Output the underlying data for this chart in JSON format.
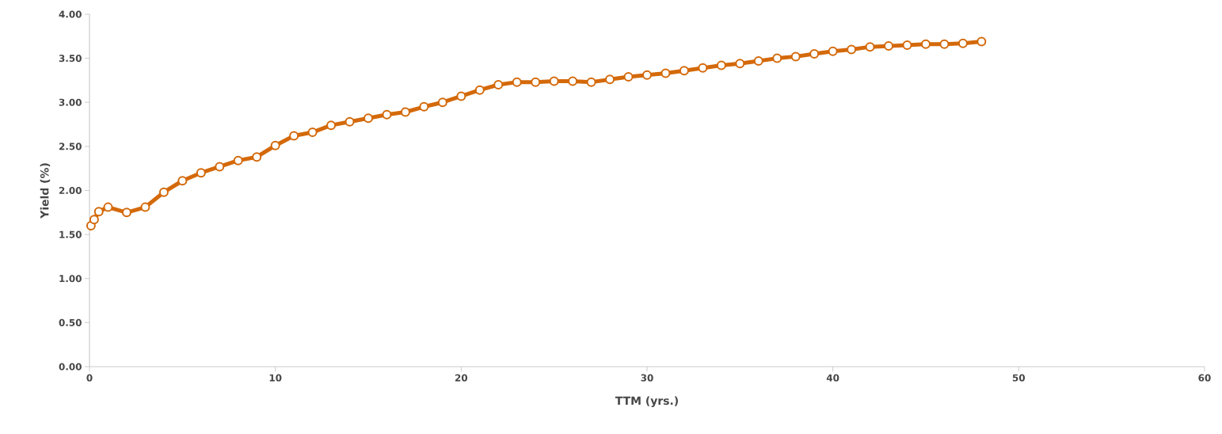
{
  "chart_data": {
    "type": "line",
    "xlabel": "TTM (yrs.)",
    "ylabel": "Yield (%)",
    "xlim": [
      0,
      60
    ],
    "xticks": [
      0,
      10,
      20,
      30,
      40,
      50,
      60
    ],
    "ylim": [
      0,
      4
    ],
    "yticks": [
      {
        "value": 0,
        "label": "0.00"
      },
      {
        "value": 0.5,
        "label": "0.50"
      },
      {
        "value": 1,
        "label": "1.00"
      },
      {
        "value": 1.5,
        "label": "1.50"
      },
      {
        "value": 2,
        "label": "2.00"
      },
      {
        "value": 2.5,
        "label": "2.50"
      },
      {
        "value": 3,
        "label": "3.00"
      },
      {
        "value": 3.5,
        "label": "3.50"
      },
      {
        "value": 4,
        "label": "4.00"
      }
    ],
    "grid": false,
    "legend": false,
    "marker": "circle",
    "line_style": "solid",
    "x": [
      0.08,
      0.25,
      0.5,
      1,
      2,
      3,
      4,
      5,
      6,
      7,
      8,
      9,
      10,
      11,
      12,
      13,
      14,
      15,
      16,
      17,
      18,
      19,
      20,
      21,
      22,
      23,
      24,
      25,
      26,
      27,
      28,
      29,
      30,
      31,
      32,
      33,
      34,
      35,
      36,
      37,
      38,
      39,
      40,
      41,
      42,
      43,
      44,
      45,
      46,
      47,
      48
    ],
    "series": [
      {
        "color": "#d4690a",
        "values": [
          1.6,
          1.67,
          1.76,
          1.81,
          1.75,
          1.81,
          1.98,
          2.11,
          2.2,
          2.27,
          2.34,
          2.38,
          2.51,
          2.62,
          2.66,
          2.74,
          2.78,
          2.82,
          2.86,
          2.89,
          2.95,
          3.0,
          3.07,
          3.14,
          3.2,
          3.23,
          3.23,
          3.24,
          3.24,
          3.23,
          3.26,
          3.29,
          3.31,
          3.33,
          3.36,
          3.39,
          3.42,
          3.44,
          3.47,
          3.5,
          3.52,
          3.55,
          3.58,
          3.6,
          3.63,
          3.64,
          3.65,
          3.66,
          3.66,
          3.67,
          3.69
        ]
      }
    ]
  }
}
